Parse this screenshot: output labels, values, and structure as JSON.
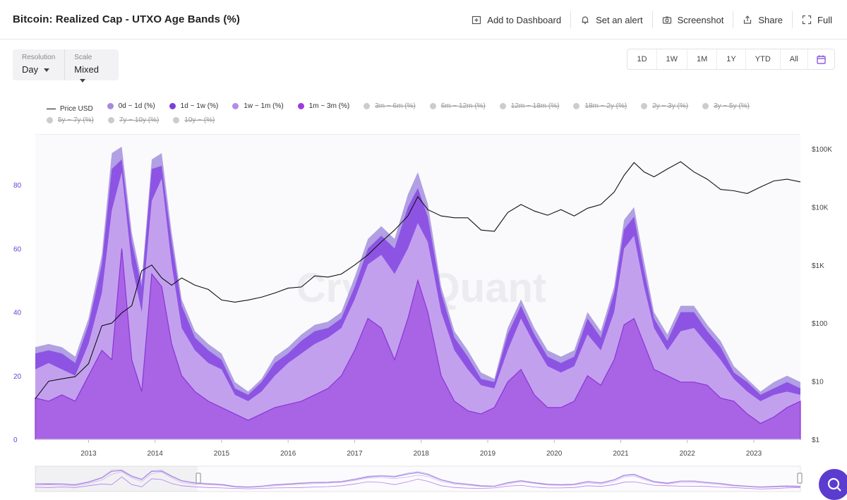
{
  "header": {
    "title": "Bitcoin: Realized Cap - UTXO Age Bands (%)",
    "actions": [
      {
        "label": "Add to Dashboard",
        "icon": "dashboard-add-icon"
      },
      {
        "label": "Set an alert",
        "icon": "bell-icon"
      },
      {
        "label": "Screenshot",
        "icon": "camera-icon"
      },
      {
        "label": "Share",
        "icon": "share-icon"
      },
      {
        "label": "Full",
        "icon": "fullscreen-icon"
      }
    ]
  },
  "controls": {
    "resolution": {
      "label": "Resolution",
      "value": "Day"
    },
    "scale": {
      "label": "Scale",
      "value": "Mixed"
    },
    "ranges": [
      "1D",
      "1W",
      "1M",
      "1Y",
      "YTD",
      "All"
    ]
  },
  "legend": [
    {
      "label": "Price USD",
      "color": "#111111",
      "kind": "line",
      "active": true
    },
    {
      "label": "0d ~ 1d (%)",
      "color": "#a78bdc",
      "kind": "dot",
      "active": true
    },
    {
      "label": "1d ~ 1w (%)",
      "color": "#7b3fe0",
      "kind": "dot",
      "active": true
    },
    {
      "label": "1w ~ 1m (%)",
      "color": "#b78ae8",
      "kind": "dot",
      "active": true
    },
    {
      "label": "1m ~ 3m (%)",
      "color": "#9a3bde",
      "kind": "dot",
      "active": true
    },
    {
      "label": "3m ~ 6m (%)",
      "color": "#cccccc",
      "kind": "dot",
      "active": false
    },
    {
      "label": "6m ~ 12m (%)",
      "color": "#cccccc",
      "kind": "dot",
      "active": false
    },
    {
      "label": "12m ~ 18m (%)",
      "color": "#cccccc",
      "kind": "dot",
      "active": false
    },
    {
      "label": "18m ~ 2y (%)",
      "color": "#cccccc",
      "kind": "dot",
      "active": false
    },
    {
      "label": "2y ~ 3y (%)",
      "color": "#cccccc",
      "kind": "dot",
      "active": false
    },
    {
      "label": "3y ~ 5y (%)",
      "color": "#cccccc",
      "kind": "dot",
      "active": false
    },
    {
      "label": "5y ~ 7y (%)",
      "color": "#cccccc",
      "kind": "dot",
      "active": false
    },
    {
      "label": "7y ~ 10y (%)",
      "color": "#cccccc",
      "kind": "dot",
      "active": false
    },
    {
      "label": "10y ~ (%)",
      "color": "#cccccc",
      "kind": "dot",
      "active": false
    }
  ],
  "chart_data": {
    "type": "area",
    "watermark": "CryptoQuant",
    "x": [
      2012.2,
      2012.4,
      2012.6,
      2012.8,
      2013.0,
      2013.2,
      2013.35,
      2013.5,
      2013.65,
      2013.8,
      2013.95,
      2014.1,
      2014.25,
      2014.4,
      2014.6,
      2014.8,
      2015.0,
      2015.2,
      2015.4,
      2015.6,
      2015.8,
      2016.0,
      2016.2,
      2016.4,
      2016.6,
      2016.8,
      2017.0,
      2017.2,
      2017.4,
      2017.6,
      2017.8,
      2017.95,
      2018.1,
      2018.3,
      2018.5,
      2018.7,
      2018.9,
      2019.1,
      2019.3,
      2019.5,
      2019.7,
      2019.9,
      2020.1,
      2020.3,
      2020.5,
      2020.7,
      2020.9,
      2021.05,
      2021.2,
      2021.35,
      2021.5,
      2021.7,
      2021.9,
      2022.1,
      2022.3,
      2022.5,
      2022.7,
      2022.9,
      2023.1,
      2023.3,
      2023.5,
      2023.7
    ],
    "x_ticks": [
      "2013",
      "2014",
      "2015",
      "2016",
      "2017",
      "2018",
      "2019",
      "2020",
      "2021",
      "2022",
      "2023"
    ],
    "y_left": {
      "ticks": [
        0,
        20,
        40,
        60,
        80
      ],
      "range": [
        0,
        96
      ]
    },
    "y_right": {
      "scale": "log",
      "ticks": [
        "$1",
        "$10",
        "$100",
        "$1K",
        "$10K",
        "$100K"
      ],
      "range": [
        1,
        180000
      ]
    },
    "series": [
      {
        "name": "1m ~ 3m (%)",
        "color": "#a661e3",
        "values": [
          13,
          12,
          14,
          12,
          20,
          28,
          25,
          60,
          25,
          15,
          52,
          48,
          30,
          20,
          15,
          12,
          10,
          8,
          6,
          8,
          10,
          11,
          12,
          14,
          16,
          20,
          28,
          38,
          35,
          25,
          38,
          50,
          40,
          20,
          12,
          9,
          8,
          10,
          18,
          22,
          14,
          10,
          10,
          12,
          20,
          17,
          25,
          36,
          38,
          30,
          22,
          20,
          18,
          18,
          17,
          13,
          12,
          8,
          5,
          7,
          10,
          12
        ]
      },
      {
        "name": "1w ~ 1m (%)",
        "color": "#c8a9ee",
        "values": [
          22,
          24,
          22,
          20,
          30,
          46,
          72,
          84,
          55,
          40,
          75,
          82,
          55,
          35,
          28,
          24,
          22,
          14,
          12,
          15,
          20,
          24,
          27,
          30,
          32,
          35,
          44,
          55,
          58,
          52,
          60,
          68,
          62,
          40,
          28,
          22,
          17,
          16,
          28,
          38,
          30,
          23,
          21,
          23,
          33,
          28,
          40,
          60,
          64,
          48,
          35,
          28,
          34,
          35,
          30,
          25,
          19,
          15,
          12,
          14,
          15,
          14
        ]
      },
      {
        "name": "1d ~ 1w (%)",
        "color": "#8a4be2",
        "values": [
          27,
          28,
          27,
          24,
          36,
          55,
          85,
          88,
          62,
          48,
          85,
          86,
          62,
          42,
          32,
          28,
          25,
          16,
          14,
          18,
          24,
          27,
          31,
          34,
          35,
          38,
          48,
          60,
          64,
          60,
          73,
          79,
          70,
          46,
          32,
          26,
          19,
          18,
          33,
          42,
          33,
          26,
          24,
          26,
          38,
          32,
          46,
          66,
          70,
          53,
          38,
          31,
          40,
          40,
          34,
          29,
          21,
          18,
          14,
          16,
          18,
          16
        ]
      },
      {
        "name": "0d ~ 1d (%)",
        "color": "#a896e0",
        "values": [
          29,
          30,
          29,
          26,
          38,
          58,
          90,
          92,
          65,
          50,
          88,
          90,
          65,
          44,
          34,
          30,
          27,
          18,
          15,
          19,
          26,
          29,
          33,
          36,
          37,
          40,
          51,
          63,
          67,
          63,
          77,
          84,
          74,
          48,
          34,
          28,
          21,
          19,
          35,
          44,
          35,
          28,
          26,
          28,
          40,
          34,
          48,
          69,
          73,
          56,
          40,
          33,
          42,
          42,
          36,
          31,
          23,
          19,
          15,
          18,
          20,
          18
        ]
      },
      {
        "name": "Price USD",
        "color": "#111111",
        "axis": "right",
        "values": [
          5,
          10,
          11,
          12,
          20,
          90,
          100,
          150,
          200,
          800,
          1000,
          600,
          450,
          600,
          450,
          380,
          250,
          230,
          250,
          280,
          330,
          400,
          420,
          650,
          620,
          700,
          1000,
          1500,
          2500,
          4000,
          7000,
          15000,
          9000,
          7000,
          6500,
          6500,
          4000,
          3800,
          8000,
          11000,
          8500,
          7200,
          9000,
          7000,
          9500,
          11000,
          18000,
          35000,
          58000,
          40000,
          33000,
          45000,
          60000,
          40000,
          30000,
          20000,
          19000,
          17000,
          22000,
          28000,
          30000,
          27000
        ]
      }
    ]
  }
}
